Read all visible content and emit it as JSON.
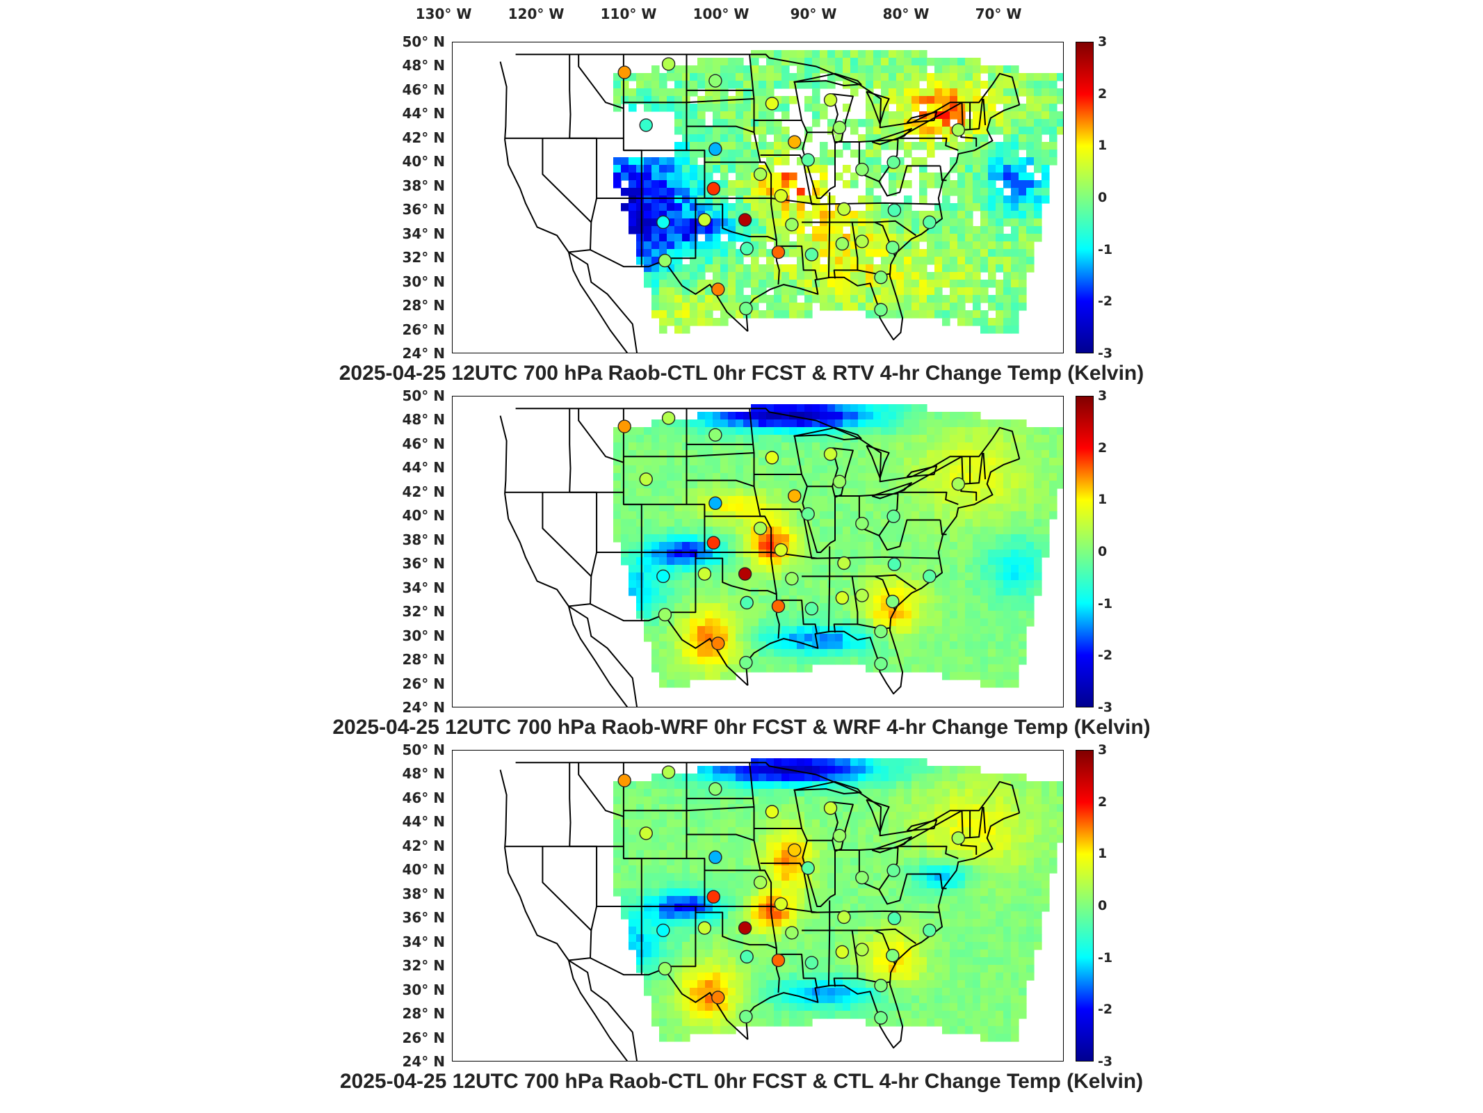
{
  "colormap": {
    "name": "jet",
    "stops": [
      "#00008f",
      "#0000ff",
      "#00ffff",
      "#80ff80",
      "#ffff00",
      "#ff0000",
      "#800000"
    ]
  },
  "longitude_labels": [
    "130° W",
    "120° W",
    "110° W",
    "100° W",
    "90° W",
    "80° W",
    "70° W"
  ],
  "latitude_labels": [
    "50° N",
    "48° N",
    "46° N",
    "44° N",
    "42° N",
    "40° N",
    "38° N",
    "36° N",
    "34° N",
    "32° N",
    "30° N",
    "28° N",
    "26° N",
    "24° N"
  ],
  "colorbar_ticks": [
    "3",
    "2",
    "1",
    "0",
    "-1",
    "-2",
    "-3"
  ],
  "colorbar_range": [
    -3,
    3
  ],
  "panels": [
    {
      "title": "2025-04-25 12UTC 700 hPa Raob-CTL 0hr FCST & RTV 4-hr Change Temp (Kelvin)",
      "field_style": "speckled-with-gaps",
      "stations": [
        {
          "lon": -110.9,
          "lat": 47.5,
          "value": 1.4
        },
        {
          "lon": -106.0,
          "lat": 48.2,
          "value": 0.4
        },
        {
          "lon": -100.8,
          "lat": 46.8,
          "value": 0.1
        },
        {
          "lon": -94.5,
          "lat": 44.9,
          "value": 0.8
        },
        {
          "lon": -88.0,
          "lat": 45.2,
          "value": 0.6
        },
        {
          "lon": -87.0,
          "lat": 42.9,
          "value": 0.2
        },
        {
          "lon": -73.8,
          "lat": 42.7,
          "value": 0.3
        },
        {
          "lon": -108.5,
          "lat": 43.1,
          "value": -0.6
        },
        {
          "lon": -100.8,
          "lat": 41.1,
          "value": -1.3
        },
        {
          "lon": -92.0,
          "lat": 41.7,
          "value": 1.3
        },
        {
          "lon": -90.5,
          "lat": 40.2,
          "value": -0.3
        },
        {
          "lon": -84.5,
          "lat": 39.4,
          "value": 0.1
        },
        {
          "lon": -81.0,
          "lat": 40.0,
          "value": -0.2
        },
        {
          "lon": -101.0,
          "lat": 37.8,
          "value": 1.8
        },
        {
          "lon": -95.8,
          "lat": 39.0,
          "value": 0.3
        },
        {
          "lon": -93.5,
          "lat": 37.2,
          "value": 0.7
        },
        {
          "lon": -86.5,
          "lat": 36.1,
          "value": 0.5
        },
        {
          "lon": -80.9,
          "lat": 36.0,
          "value": -0.4
        },
        {
          "lon": -106.6,
          "lat": 35.0,
          "value": -0.9
        },
        {
          "lon": -102.0,
          "lat": 35.2,
          "value": 0.6
        },
        {
          "lon": -97.5,
          "lat": 35.2,
          "value": 2.6
        },
        {
          "lon": -92.3,
          "lat": 34.8,
          "value": 0.2
        },
        {
          "lon": -97.3,
          "lat": 32.8,
          "value": -0.4
        },
        {
          "lon": -93.8,
          "lat": 32.5,
          "value": 1.6
        },
        {
          "lon": -90.1,
          "lat": 32.3,
          "value": -0.3
        },
        {
          "lon": -86.7,
          "lat": 33.2,
          "value": 0.2
        },
        {
          "lon": -84.5,
          "lat": 33.4,
          "value": 0.4
        },
        {
          "lon": -81.1,
          "lat": 32.9,
          "value": -0.1
        },
        {
          "lon": -106.4,
          "lat": 31.8,
          "value": 0.2
        },
        {
          "lon": -100.5,
          "lat": 29.4,
          "value": 1.5
        },
        {
          "lon": -97.4,
          "lat": 27.8,
          "value": -0.1
        },
        {
          "lon": -82.4,
          "lat": 30.4,
          "value": 0.0
        },
        {
          "lon": -82.4,
          "lat": 27.7,
          "value": -0.1
        },
        {
          "lon": -77.0,
          "lat": 35.0,
          "value": -0.3
        }
      ]
    },
    {
      "title": "2025-04-25 12UTC 700 hPa Raob-WRF 0hr FCST & WRF 4-hr Change Temp (Kelvin)",
      "field_style": "smooth",
      "stations": [
        {
          "lon": -110.9,
          "lat": 47.5,
          "value": 1.4
        },
        {
          "lon": -106.0,
          "lat": 48.2,
          "value": 0.4
        },
        {
          "lon": -100.8,
          "lat": 46.8,
          "value": 0.1
        },
        {
          "lon": -94.5,
          "lat": 44.9,
          "value": 0.8
        },
        {
          "lon": -88.0,
          "lat": 45.2,
          "value": 0.6
        },
        {
          "lon": -87.0,
          "lat": 42.9,
          "value": 0.2
        },
        {
          "lon": -73.8,
          "lat": 42.7,
          "value": 0.3
        },
        {
          "lon": -108.5,
          "lat": 43.1,
          "value": 0.5
        },
        {
          "lon": -100.8,
          "lat": 41.1,
          "value": -1.3
        },
        {
          "lon": -92.0,
          "lat": 41.7,
          "value": 1.3
        },
        {
          "lon": -90.5,
          "lat": 40.2,
          "value": -0.2
        },
        {
          "lon": -84.5,
          "lat": 39.4,
          "value": 0.1
        },
        {
          "lon": -81.0,
          "lat": 40.0,
          "value": -0.2
        },
        {
          "lon": -101.0,
          "lat": 37.8,
          "value": 1.8
        },
        {
          "lon": -95.8,
          "lat": 39.0,
          "value": 0.3
        },
        {
          "lon": -93.5,
          "lat": 37.2,
          "value": 0.7
        },
        {
          "lon": -86.5,
          "lat": 36.1,
          "value": 0.5
        },
        {
          "lon": -80.9,
          "lat": 36.0,
          "value": -0.4
        },
        {
          "lon": -106.6,
          "lat": 35.0,
          "value": -1.0
        },
        {
          "lon": -102.0,
          "lat": 35.2,
          "value": 0.6
        },
        {
          "lon": -97.5,
          "lat": 35.2,
          "value": 2.6
        },
        {
          "lon": -92.3,
          "lat": 34.8,
          "value": 0.2
        },
        {
          "lon": -97.3,
          "lat": 32.8,
          "value": -0.4
        },
        {
          "lon": -93.8,
          "lat": 32.5,
          "value": 1.6
        },
        {
          "lon": -90.1,
          "lat": 32.3,
          "value": -0.3
        },
        {
          "lon": -86.7,
          "lat": 33.2,
          "value": 0.7
        },
        {
          "lon": -84.5,
          "lat": 33.4,
          "value": 0.4
        },
        {
          "lon": -81.1,
          "lat": 32.9,
          "value": 0.0
        },
        {
          "lon": -106.4,
          "lat": 31.8,
          "value": 0.2
        },
        {
          "lon": -100.5,
          "lat": 29.4,
          "value": 1.5
        },
        {
          "lon": -97.4,
          "lat": 27.8,
          "value": -0.1
        },
        {
          "lon": -82.4,
          "lat": 30.4,
          "value": 0.0
        },
        {
          "lon": -82.4,
          "lat": 27.7,
          "value": -0.1
        },
        {
          "lon": -77.0,
          "lat": 35.0,
          "value": -0.3
        }
      ]
    },
    {
      "title": "2025-04-25 12UTC 700 hPa Raob-CTL 0hr FCST & CTL 4-hr Change Temp (Kelvin)",
      "field_style": "smooth",
      "stations": [
        {
          "lon": -110.9,
          "lat": 47.5,
          "value": 1.4
        },
        {
          "lon": -106.0,
          "lat": 48.2,
          "value": 0.4
        },
        {
          "lon": -100.8,
          "lat": 46.8,
          "value": 0.1
        },
        {
          "lon": -94.5,
          "lat": 44.9,
          "value": 0.8
        },
        {
          "lon": -88.0,
          "lat": 45.2,
          "value": 0.6
        },
        {
          "lon": -87.0,
          "lat": 42.9,
          "value": 0.2
        },
        {
          "lon": -73.8,
          "lat": 42.7,
          "value": 0.3
        },
        {
          "lon": -108.5,
          "lat": 43.1,
          "value": 0.6
        },
        {
          "lon": -100.8,
          "lat": 41.1,
          "value": -1.3
        },
        {
          "lon": -92.0,
          "lat": 41.7,
          "value": 1.2
        },
        {
          "lon": -90.5,
          "lat": 40.2,
          "value": -0.3
        },
        {
          "lon": -84.5,
          "lat": 39.4,
          "value": 0.1
        },
        {
          "lon": -81.0,
          "lat": 40.0,
          "value": -0.2
        },
        {
          "lon": -101.0,
          "lat": 37.8,
          "value": 1.8
        },
        {
          "lon": -95.8,
          "lat": 39.0,
          "value": 0.3
        },
        {
          "lon": -93.5,
          "lat": 37.2,
          "value": 0.7
        },
        {
          "lon": -86.5,
          "lat": 36.1,
          "value": 0.5
        },
        {
          "lon": -80.9,
          "lat": 36.0,
          "value": -0.4
        },
        {
          "lon": -106.6,
          "lat": 35.0,
          "value": -1.0
        },
        {
          "lon": -102.0,
          "lat": 35.2,
          "value": 0.6
        },
        {
          "lon": -97.5,
          "lat": 35.2,
          "value": 2.6
        },
        {
          "lon": -92.3,
          "lat": 34.8,
          "value": 0.2
        },
        {
          "lon": -97.3,
          "lat": 32.8,
          "value": -0.4
        },
        {
          "lon": -93.8,
          "lat": 32.5,
          "value": 1.6
        },
        {
          "lon": -90.1,
          "lat": 32.3,
          "value": -0.3
        },
        {
          "lon": -86.7,
          "lat": 33.2,
          "value": 0.7
        },
        {
          "lon": -84.5,
          "lat": 33.4,
          "value": 0.4
        },
        {
          "lon": -81.1,
          "lat": 32.9,
          "value": 0.0
        },
        {
          "lon": -106.4,
          "lat": 31.8,
          "value": 0.2
        },
        {
          "lon": -100.5,
          "lat": 29.4,
          "value": 1.5
        },
        {
          "lon": -97.4,
          "lat": 27.8,
          "value": -0.1
        },
        {
          "lon": -82.4,
          "lat": 30.4,
          "value": 0.0
        },
        {
          "lon": -82.4,
          "lat": 27.7,
          "value": -0.1
        },
        {
          "lon": -77.0,
          "lat": 35.0,
          "value": -0.3
        }
      ]
    }
  ]
}
